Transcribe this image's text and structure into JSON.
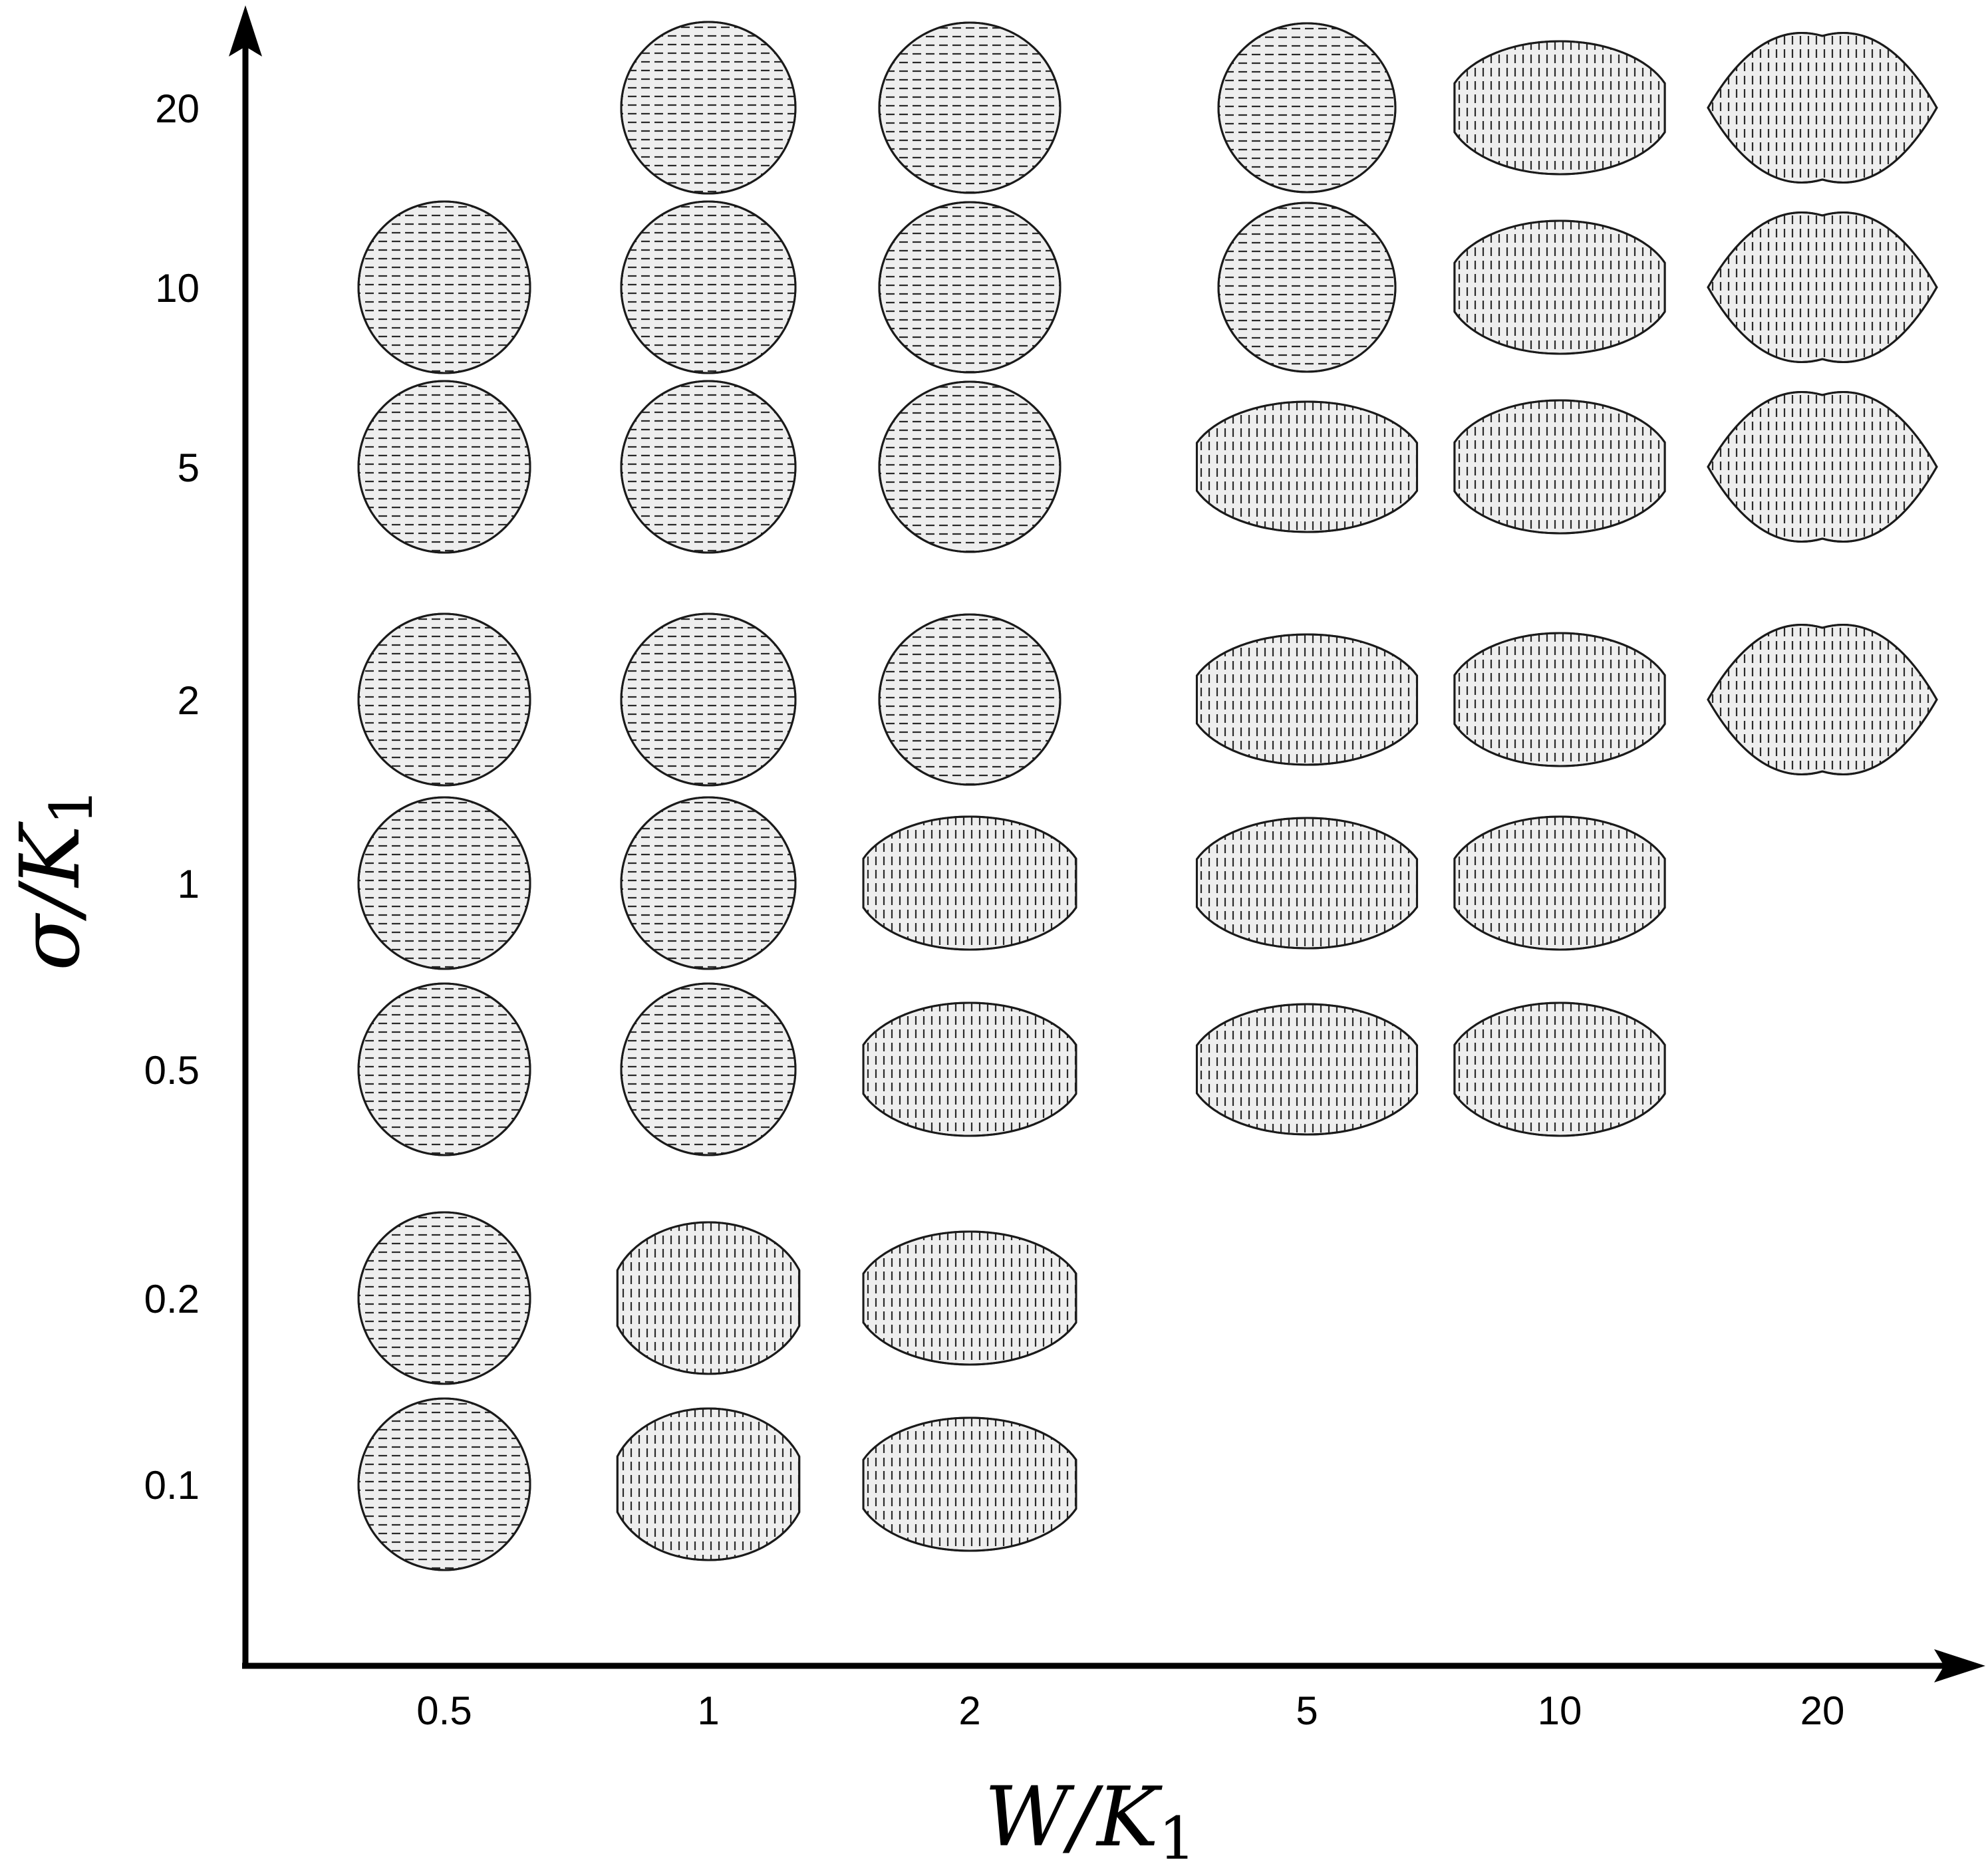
{
  "chart_data": {
    "type": "scatter",
    "xlabel": "W/K1",
    "ylabel": "σ/K1",
    "x_scale": "log",
    "y_scale": "log",
    "x_ticks": [
      "0.5",
      "1",
      "2",
      "5",
      "10",
      "20"
    ],
    "y_ticks": [
      "20",
      "10",
      "5",
      "2",
      "1",
      "0.5",
      "0.2",
      "0.1"
    ],
    "grid": false,
    "marker": "droplet shape (tactoid) at each computed (W/K1, σ/K1) pair",
    "points": [
      {
        "x": 0.5,
        "y": 10,
        "shape": "circle"
      },
      {
        "x": 0.5,
        "y": 5,
        "shape": "circle"
      },
      {
        "x": 0.5,
        "y": 2,
        "shape": "circle"
      },
      {
        "x": 0.5,
        "y": 1,
        "shape": "circle"
      },
      {
        "x": 0.5,
        "y": 0.5,
        "shape": "circle"
      },
      {
        "x": 0.5,
        "y": 0.2,
        "shape": "circle"
      },
      {
        "x": 0.5,
        "y": 0.1,
        "shape": "circle"
      },
      {
        "x": 1,
        "y": 20,
        "shape": "circle"
      },
      {
        "x": 1,
        "y": 10,
        "shape": "circle"
      },
      {
        "x": 1,
        "y": 5,
        "shape": "circle"
      },
      {
        "x": 1,
        "y": 2,
        "shape": "circle"
      },
      {
        "x": 1,
        "y": 1,
        "shape": "circle"
      },
      {
        "x": 1,
        "y": 0.5,
        "shape": "circle"
      },
      {
        "x": 1,
        "y": 0.2,
        "shape": "truncated"
      },
      {
        "x": 1,
        "y": 0.1,
        "shape": "truncated"
      },
      {
        "x": 2,
        "y": 20,
        "shape": "circle"
      },
      {
        "x": 2,
        "y": 10,
        "shape": "circle"
      },
      {
        "x": 2,
        "y": 5,
        "shape": "circle"
      },
      {
        "x": 2,
        "y": 2,
        "shape": "circle"
      },
      {
        "x": 2,
        "y": 1,
        "shape": "truncated"
      },
      {
        "x": 2,
        "y": 0.5,
        "shape": "truncated"
      },
      {
        "x": 2,
        "y": 0.2,
        "shape": "truncated"
      },
      {
        "x": 2,
        "y": 0.1,
        "shape": "truncated"
      },
      {
        "x": 5,
        "y": 20,
        "shape": "circle"
      },
      {
        "x": 5,
        "y": 10,
        "shape": "circle"
      },
      {
        "x": 5,
        "y": 5,
        "shape": "truncated"
      },
      {
        "x": 5,
        "y": 2,
        "shape": "truncated"
      },
      {
        "x": 5,
        "y": 1,
        "shape": "truncated"
      },
      {
        "x": 5,
        "y": 0.5,
        "shape": "truncated"
      },
      {
        "x": 10,
        "y": 20,
        "shape": "truncated"
      },
      {
        "x": 10,
        "y": 10,
        "shape": "truncated"
      },
      {
        "x": 10,
        "y": 5,
        "shape": "truncated"
      },
      {
        "x": 10,
        "y": 2,
        "shape": "truncated"
      },
      {
        "x": 10,
        "y": 1,
        "shape": "truncated"
      },
      {
        "x": 10,
        "y": 0.5,
        "shape": "truncated"
      },
      {
        "x": 20,
        "y": 20,
        "shape": "pointed"
      },
      {
        "x": 20,
        "y": 10,
        "shape": "pointed"
      },
      {
        "x": 20,
        "y": 5,
        "shape": "pointed"
      },
      {
        "x": 20,
        "y": 2,
        "shape": "pointed"
      }
    ],
    "colors": {
      "axis": "#000000",
      "fill": "#eeeeee",
      "outline": "#1a1a1a",
      "director": "#2a2a2a"
    }
  }
}
